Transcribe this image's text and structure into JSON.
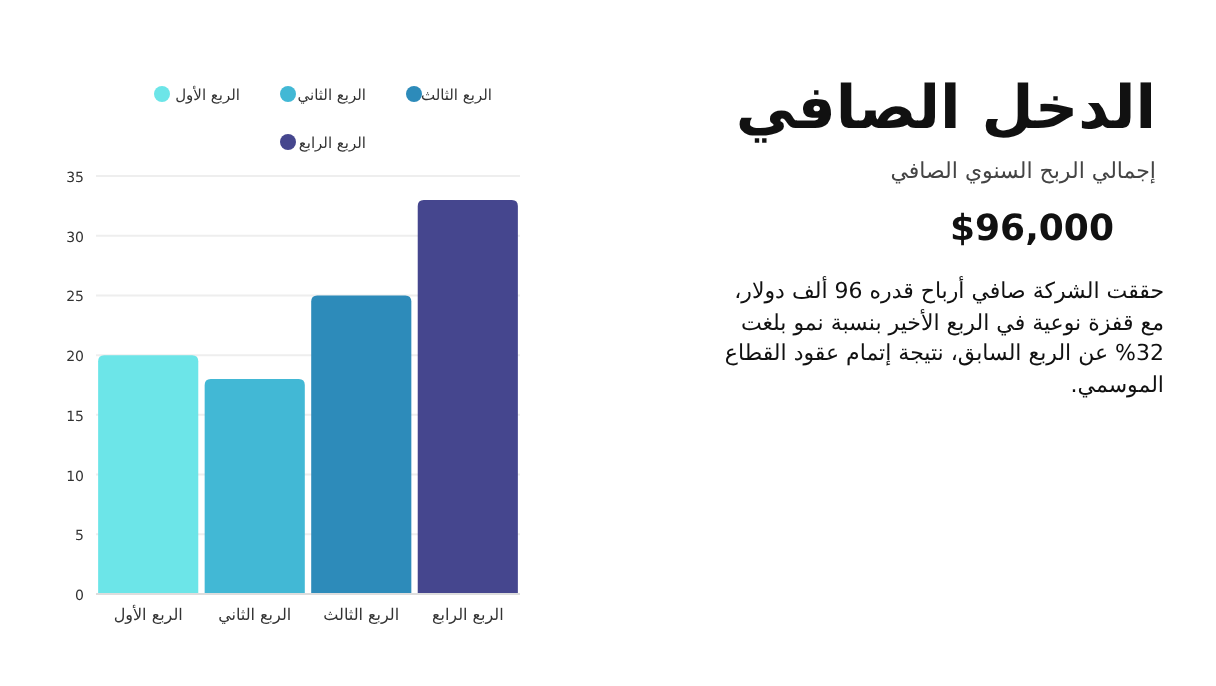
{
  "chart_data": {
    "type": "bar",
    "title": "الدخل الصافي",
    "subtitle": "إجمالي الربح السنوي الصافي",
    "annotations": [
      "$96,000",
      "حققت الشركة صافي أرباح قدره 96 ألف دولار، مع قفزة نوعية في الربع الأخير بنسبة نمو بلغت 32% عن الربع السابق، نتيجة إتمام عقود القطاع الموسمي."
    ],
    "categories": [
      "الربع الأول",
      "الربع الثاني",
      "الربع الثالث",
      "الربع الرابع"
    ],
    "stacked": true,
    "series": [
      {
        "name": "الربع الأول",
        "color": "#6ce5e8",
        "values": [
          20,
          null,
          null,
          null
        ]
      },
      {
        "name": "الربع الثاني",
        "color": "#42b8d5",
        "values": [
          null,
          18,
          null,
          null
        ]
      },
      {
        "name": "الربع الثالث",
        "color": "#2d8bba",
        "values": [
          null,
          null,
          25,
          null
        ]
      },
      {
        "name": "الربع الرابع",
        "color": "#45468e",
        "values": [
          null,
          null,
          null,
          33
        ]
      }
    ],
    "ylim": [
      0,
      35
    ],
    "yticks": [
      0,
      5,
      10,
      15,
      20,
      25,
      30,
      35
    ],
    "grid": "y",
    "legend": "top"
  }
}
